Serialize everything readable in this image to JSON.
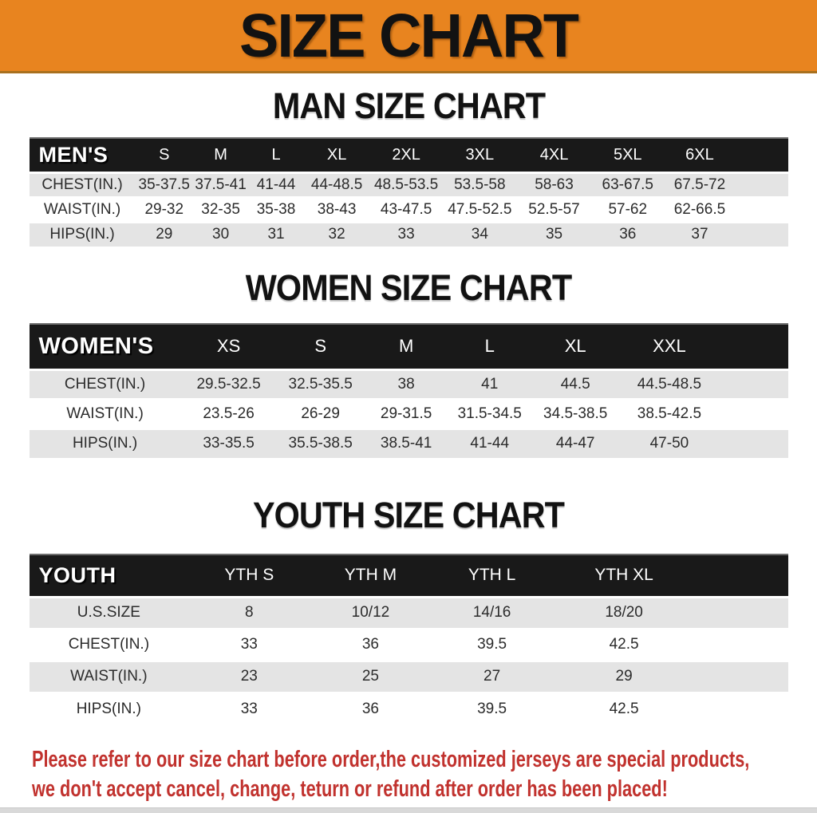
{
  "banner": {
    "title": "SIZE CHART"
  },
  "colors": {
    "banner_bg": "#E8841F",
    "table_header_bg": "#191919",
    "row_alt_bg": "#e4e4e4",
    "disclaimer_text": "#C1322E"
  },
  "sections": [
    {
      "title": "MAN SIZE CHART",
      "table": {
        "header": [
          "MEN'S",
          "S",
          "M",
          "L",
          "XL",
          "2XL",
          "3XL",
          "4XL",
          "5XL",
          "6XL"
        ],
        "rows": [
          [
            "CHEST(IN.)",
            "35-37.5",
            "37.5-41",
            "41-44",
            "44-48.5",
            "48.5-53.5",
            "53.5-58",
            "58-63",
            "63-67.5",
            "67.5-72"
          ],
          [
            "WAIST(IN.)",
            "29-32",
            "32-35",
            "35-38",
            "38-43",
            "43-47.5",
            "47.5-52.5",
            "52.5-57",
            "57-62",
            "62-66.5"
          ],
          [
            "HIPS(IN.)",
            "29",
            "30",
            "31",
            "32",
            "33",
            "34",
            "35",
            "36",
            "37"
          ]
        ]
      }
    },
    {
      "title": "WOMEN SIZE CHART",
      "table": {
        "header": [
          "WOMEN'S",
          "XS",
          "S",
          "M",
          "L",
          "XL",
          "XXL"
        ],
        "rows": [
          [
            "CHEST(IN.)",
            "29.5-32.5",
            "32.5-35.5",
            "38",
            "41",
            "44.5",
            "44.5-48.5"
          ],
          [
            "WAIST(IN.)",
            "23.5-26",
            "26-29",
            "29-31.5",
            "31.5-34.5",
            "34.5-38.5",
            "38.5-42.5"
          ],
          [
            "HIPS(IN.)",
            "33-35.5",
            "35.5-38.5",
            "38.5-41",
            "41-44",
            "44-47",
            "47-50"
          ]
        ]
      }
    },
    {
      "title": "YOUTH SIZE CHART",
      "table": {
        "header": [
          "YOUTH",
          "YTH S",
          "YTH M",
          "YTH L",
          "YTH XL"
        ],
        "rows": [
          [
            "U.S.SIZE",
            "8",
            "10/12",
            "14/16",
            "18/20"
          ],
          [
            "CHEST(IN.)",
            "33",
            "36",
            "39.5",
            "42.5"
          ],
          [
            "WAIST(IN.)",
            "23",
            "25",
            "27",
            "29"
          ],
          [
            "HIPS(IN.)",
            "33",
            "36",
            "39.5",
            "42.5"
          ]
        ]
      }
    }
  ],
  "disclaimer": {
    "line1": "Please refer to our size chart before order,the customized jerseys are special products,",
    "line2": "we don't accept cancel, change, teturn or refund after order has been placed!"
  }
}
